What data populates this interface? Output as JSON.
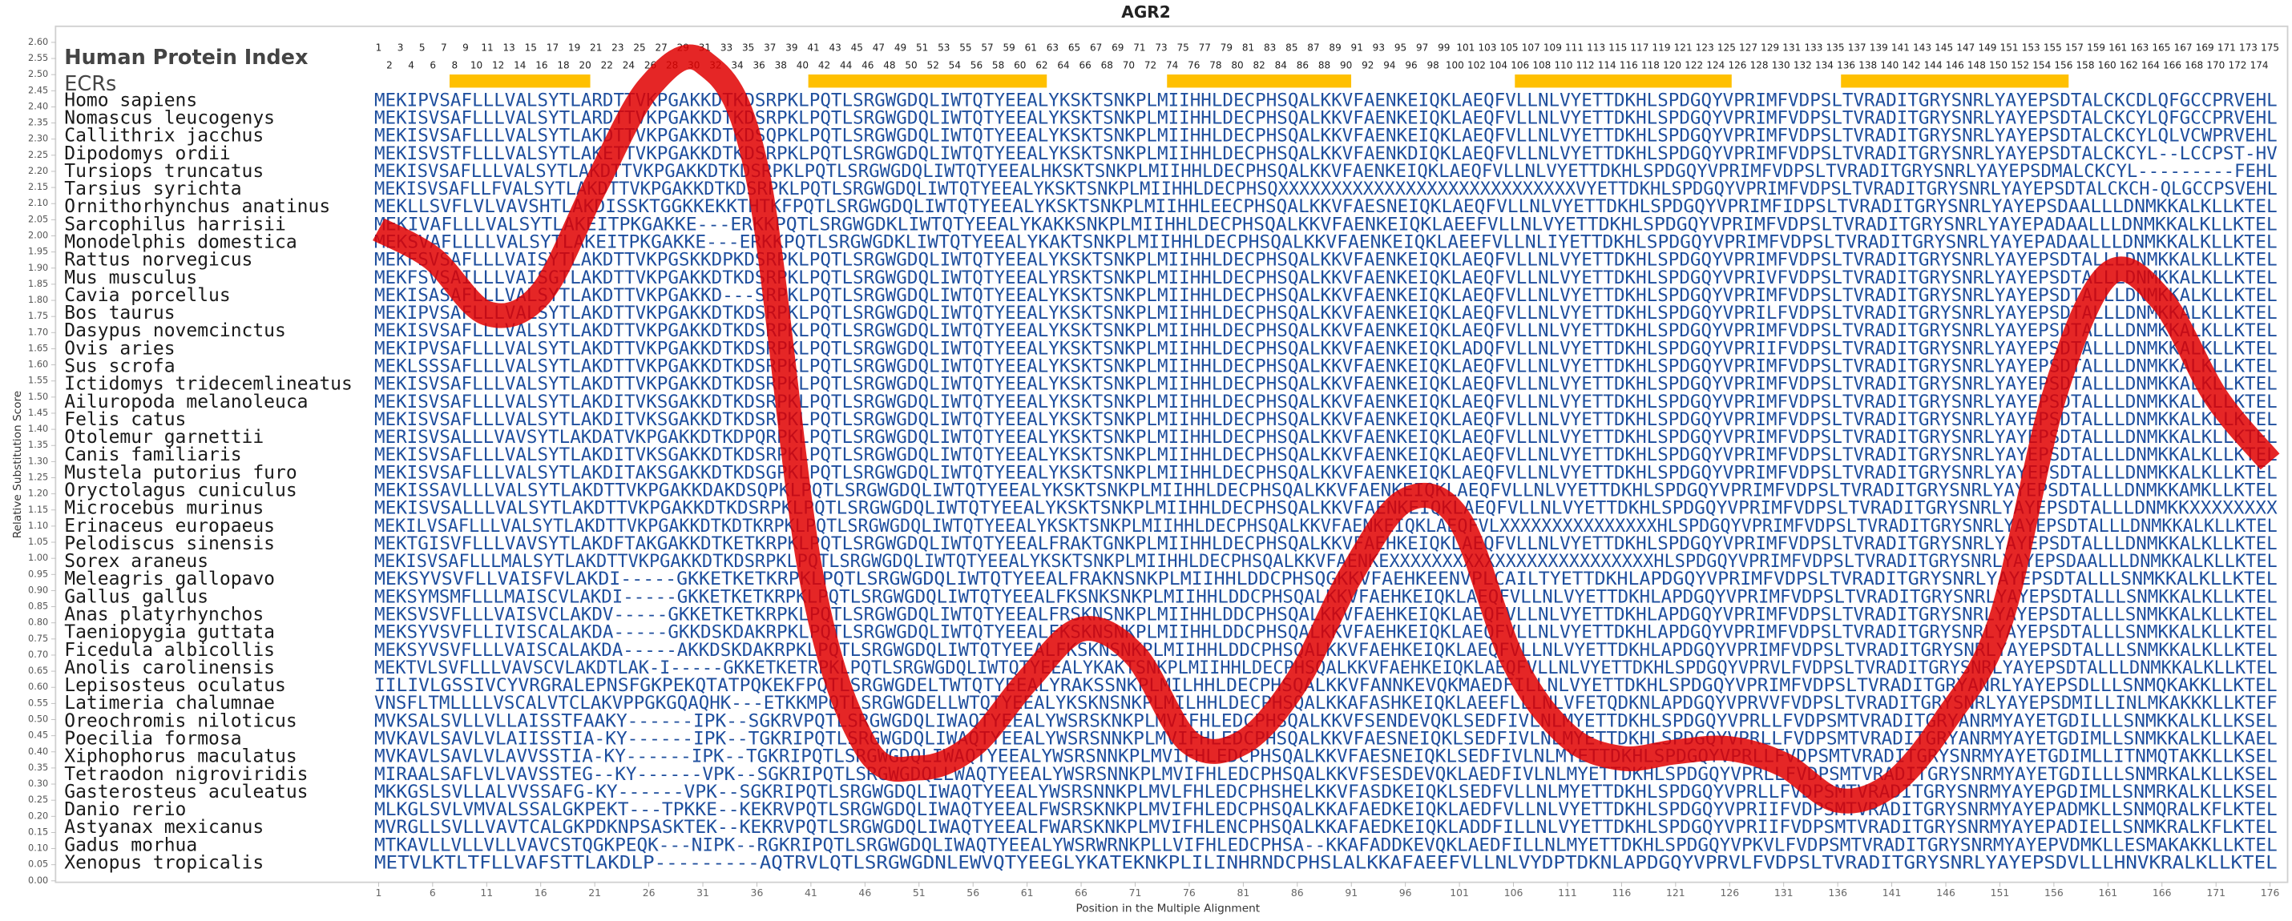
{
  "chart_data": {
    "type": "line",
    "title": "AGR2",
    "x_label": "Position in the Multiple Alignment",
    "y_label": "Relative Substitution Score",
    "x": [
      1,
      6,
      11,
      16,
      21,
      26,
      31,
      36,
      41,
      46,
      51,
      56,
      61,
      66,
      71,
      76,
      81,
      86,
      91,
      96,
      101,
      106,
      111,
      116,
      121,
      126,
      131,
      136,
      141,
      146,
      151,
      156,
      161,
      166,
      171,
      176
    ],
    "series": [
      {
        "color": "#e00000",
        "values": [
          2.02,
          1.93,
          1.76,
          1.82,
          2.15,
          2.46,
          2.54,
          2.2,
          0.95,
          0.42,
          0.35,
          0.42,
          0.62,
          0.78,
          0.7,
          0.43,
          0.43,
          0.62,
          0.95,
          1.18,
          1.12,
          0.68,
          0.45,
          0.38,
          0.4,
          0.41,
          0.36,
          0.25,
          0.3,
          0.5,
          0.8,
          1.5,
          1.88,
          1.8,
          1.5,
          1.3
        ]
      }
    ],
    "xlim": [
      0,
      177
    ],
    "ylim": [
      0,
      2.6
    ],
    "xticks": [
      1,
      6,
      11,
      16,
      21,
      26,
      31,
      36,
      41,
      46,
      51,
      56,
      61,
      66,
      71,
      76,
      81,
      86,
      91,
      96,
      101,
      106,
      111,
      116,
      121,
      126,
      131,
      136,
      141,
      146,
      151,
      156,
      161,
      166,
      171,
      176
    ],
    "yticks": [
      {
        "value": 0,
        "label": "0.00"
      },
      {
        "value": 0.05,
        "label": "0.05"
      },
      {
        "value": 0.1,
        "label": "0.10"
      },
      {
        "value": 0.15,
        "label": "0.15"
      },
      {
        "value": 0.2,
        "label": "0.20"
      },
      {
        "value": 0.25,
        "label": "0.25"
      },
      {
        "value": 0.3,
        "label": "0.30"
      },
      {
        "value": 0.35,
        "label": "0.35"
      },
      {
        "value": 0.4,
        "label": "0.40"
      },
      {
        "value": 0.45,
        "label": "0.45"
      },
      {
        "value": 0.5,
        "label": "0.50"
      },
      {
        "value": 0.55,
        "label": "0.55"
      },
      {
        "value": 0.6,
        "label": "0.60"
      },
      {
        "value": 0.65,
        "label": "0.65"
      },
      {
        "value": 0.7,
        "label": "0.70"
      },
      {
        "value": 0.75,
        "label": "0.75"
      },
      {
        "value": 0.8,
        "label": "0.80"
      },
      {
        "value": 0.85,
        "label": "0.85"
      },
      {
        "value": 0.9,
        "label": "0.90"
      },
      {
        "value": 0.95,
        "label": "0.95"
      },
      {
        "value": 1,
        "label": "1.00"
      },
      {
        "value": 1.05,
        "label": "1.05"
      },
      {
        "value": 1.1,
        "label": "1.10"
      },
      {
        "value": 1.15,
        "label": "1.15"
      },
      {
        "value": 1.2,
        "label": "1.20"
      },
      {
        "value": 1.25,
        "label": "1.25"
      },
      {
        "value": 1.3,
        "label": "1.30"
      },
      {
        "value": 1.35,
        "label": "1.35"
      },
      {
        "value": 1.4,
        "label": "1.40"
      },
      {
        "value": 1.45,
        "label": "1.45"
      },
      {
        "value": 1.5,
        "label": "1.50"
      },
      {
        "value": 1.55,
        "label": "1.55"
      },
      {
        "value": 1.6,
        "label": "1.60"
      },
      {
        "value": 1.65,
        "label": "1.65"
      },
      {
        "value": 1.7,
        "label": "1.70"
      },
      {
        "value": 1.75,
        "label": "1.75"
      },
      {
        "value": 1.8,
        "label": "1.80"
      },
      {
        "value": 1.85,
        "label": "1.85"
      },
      {
        "value": 1.9,
        "label": "1.90"
      },
      {
        "value": 1.95,
        "label": "1.95"
      },
      {
        "value": 2,
        "label": "2.00"
      },
      {
        "value": 2.05,
        "label": "2.05"
      },
      {
        "value": 2.1,
        "label": "2.10"
      },
      {
        "value": 2.15,
        "label": "2.15"
      },
      {
        "value": 2.2,
        "label": "2.20"
      },
      {
        "value": 2.25,
        "label": "2.25"
      },
      {
        "value": 2.3,
        "label": "2.30"
      },
      {
        "value": 2.35,
        "label": "2.35"
      },
      {
        "value": 2.4,
        "label": "2.40"
      },
      {
        "value": 2.45,
        "label": "2.45"
      },
      {
        "value": 2.5,
        "label": "2.50"
      },
      {
        "value": 2.55,
        "label": "2.55"
      },
      {
        "value": 2.6,
        "label": "2.60"
      }
    ],
    "index_label": "Human Protein Index",
    "index": [
      1,
      2,
      3,
      4,
      5,
      6,
      7,
      8,
      9,
      10,
      11,
      12,
      13,
      14,
      15,
      16,
      17,
      18,
      19,
      20,
      21,
      22,
      23,
      24,
      25,
      26,
      27,
      28,
      29,
      30,
      31,
      32,
      33,
      34,
      35,
      36,
      37,
      38,
      39,
      40,
      41,
      42,
      43,
      44,
      45,
      46,
      47,
      48,
      49,
      50,
      51,
      52,
      53,
      54,
      55,
      56,
      57,
      58,
      59,
      60,
      61,
      62,
      63,
      64,
      65,
      66,
      67,
      68,
      69,
      70,
      71,
      72,
      73,
      74,
      75,
      76,
      77,
      78,
      79,
      80,
      81,
      82,
      83,
      84,
      85,
      86,
      87,
      88,
      89,
      90,
      91,
      92,
      93,
      94,
      95,
      96,
      97,
      98,
      99,
      100,
      101,
      102,
      103,
      104,
      105,
      106,
      107,
      108,
      109,
      110,
      111,
      112,
      113,
      114,
      115,
      116,
      117,
      118,
      119,
      120,
      121,
      122,
      123,
      124,
      125,
      126,
      127,
      128,
      129,
      130,
      131,
      132,
      133,
      134,
      135,
      136,
      137,
      138,
      139,
      140,
      141,
      142,
      143,
      144,
      145,
      146,
      147,
      148,
      149,
      150,
      151,
      152,
      153,
      154,
      155,
      156,
      157,
      158,
      159,
      160,
      161,
      162,
      163,
      164,
      165,
      166,
      167,
      168,
      169,
      170,
      171,
      172,
      173,
      174,
      175
    ],
    "ecr_label": "ECRs",
    "ecr_color": "#ffc000",
    "ecrs": [
      [
        8,
        20
      ],
      [
        41,
        62
      ],
      [
        74,
        90
      ],
      [
        106,
        125
      ],
      [
        136,
        156
      ]
    ],
    "rows": [
      {
        "species": "Homo sapiens",
        "sequence": "MEKIPVSAFLLLVALSYTLARDTTVKPGAKKDTKDSRPKLPQTLSRGWGDQLIWTQTYEEALYKSKTSNKPLMIIHHLDECPHSQALKKVFAENKEIQKLAEQFVLLNLVYETTDKHLSPDGQYVPRIMFVDPSLTVRADITGRYSNRLYAYEPSDTALCKCDLQFGCCPRVEHL"
      },
      {
        "species": "Nomascus leucogenys",
        "sequence": "MEKISVSAFLLLVALSYTLARDTTVKPGAKKDTKDSRPKLPQTLSRGWGDQLIWTQTYEEALYKSKTSNKPLMIIHHLDECPHSQALKKVFAENKEIQKLAEQFVLLNLVYETTDKHLSPDGQYVPRIMFVDPSLTVRADITGRYSNRLYAYEPSDTALCKCYLQFGCCPRVEHL"
      },
      {
        "species": "Callithrix jacchus",
        "sequence": "MEKISVSAFLLLVALSYTLAKDTTVKPGAKKDTKDSQPKLPQTLSRGWGDQLIWTQTYEEALYKSKTSNKPLMIIHHLDECPHSQALKKVFAENKEIQKLAEQFVLLNLVYETTDKHLSPDGQYVPRIMFVDPSLTVRADITGRYSNRLYAYEPSDTALCKCYLQLVCWPRVEHL"
      },
      {
        "species": "Dipodomys ordii",
        "sequence": "MEKISVSTFLLLVALSYTLAKETTVKPGAKKDTKDSRPKLPQTLSRGWGDQLIWTQTYEEALYKSKTSNKPLMIIHHLDECPHSQALKKVFAENKDIQKLAEQFVLLNLVYETTDKHLSPDGQYVPRIMFVDPSLTVRADITGRYSNRLYAYEPSDTALCKCYL--LCCPST-HV"
      },
      {
        "species": "Tursiops truncatus",
        "sequence": "MEKISVSAFLLLVALSYTLAKDTTVKPGAKKDTKDSRPKLPQTLSRGWGDQLIWTQTYEEALHKSKTSNKPLMIIHHLDECPHSQALKKVFAENKEIQKLAEQFVLLNLVYETTDKHLSPDGQYVPRIMFVDPSLTVRADITGRYSNRLYAYEPSDMALCKCYL---------FEHL"
      },
      {
        "species": "Tarsius syrichta",
        "sequence": "MEKISVSAFLLFVALSYTLAKDTTVKPGAKKDTKDSRPKLPQTLSRGWGDQLIWTQTYEEALYKSKTSNKPLMIIHHLDECPHSQXXXXXXXXXXXXXXXXXXXXXXXXXXXXVYETTDKHLSPDGQYVPRIMFVDPSLTVRADITGRYSNRLYAYEPSDTALCKCH-QLGCCPSVEHL"
      },
      {
        "species": "Ornithorhynchus anatinus",
        "sequence": "MEKLLSVFLVLVAVSHTLAKDISSKTGGKKEKKTHTKFPQTLSRGWGDQLIWTQTYEEALYKSKTSNKPLMIIHHLEECPHSQALKKVFAESNEIQKLAEQFVLLNLVYETTDKHLSPDGQYVPRIMFIDPSLTVRADITGRYSNRLYAYEPSDAALLLDNMKKALKLLKTEL"
      },
      {
        "species": "Sarcophilus harrisii",
        "sequence": "MEKIVAFLLLVALSYTLAKEITPKGAKKE---ERKKPQTLSRGWGDKLIWTQTYEEALYKAKKSNKPLMIIHHLDECPHSQALKKVFAENKEIQKLAEEFVLLNLVYETTDKHLSPDGQYVPRIMFVDPSLTVRADITGRYSNRLYAYEPADAALLLDNMKKALKLLKTEL"
      },
      {
        "species": "Monodelphis domestica",
        "sequence": "MEKSVAFLLLLVALSYTLAKEITPKGAKKE---ERKKPQTLSRGWGDKLIWTQTYEEALYKAKTSNKPLMIIHHLDECPHSQALKKVFAENKEIQKLAEEFVLLNLIYETTDKHLSPDGQYVPRIMFVDPSLTVRADITGRYSNRLYAYEPADAALLLDNMKKALKLLKTEL"
      },
      {
        "species": "Rattus norvegicus",
        "sequence": "MEKFSVSAFLLLVAISYTLAKDTTVKPGSKKDPKDSRPKLPQTLSRGWGDQLIWTQTYEEALYKSKTSNKPLMIIHHLDECPHSQALKKVFAENKEIQKLAEQFVLLNLVYETTDKHLSPDGQYVPRIMFVDPSLTVRADITGRYSNRLYAYEPSDTALLLDNMKKALKLLKTEL"
      },
      {
        "species": "Mus musculus",
        "sequence": "MEKFSVSAILLLVAISGTLAKDTTVKPGAKKDTKDSRPKLPQTLSRGWGDQLIWTQTYEEALYRSKTSNKPLMIIHHLDECPHSQALKKVFAENKEIQKLAEQFVLLNLVYETTDKHLSPDGQYVPRIVFVDPSLTVRADITGRYSNRLYAYEPSDTALLLDNMKKALKLLKTEL"
      },
      {
        "species": "Cavia porcellus",
        "sequence": "MEKISASAFLLLVALSYTLAKDTTVKPGAKKD---SRPKLPQTLSRGWGDQLIWTQTYEEALYKSKTSNKPLMIIHHLDECPHSQALKKVFAENKEIQKLAEQFVLLNLVYETTDKHLSPDGQYVPRIMFVDPSLTVRADITGRYSNRLYAYEPSDTALLLDNMKKALKLLKTEL"
      },
      {
        "species": "Bos taurus",
        "sequence": "MEKIPVSAFLLLVALSYTLAKDTTVKPGAKKDTKDSRPKLPQTLSRGWGDQLIWTQTYEEALYKSKTSNKPLMIIHHLDECPHSQALKKVFAENKEIQKLAEQFVLLNLVYETTDKHLSPDGQYVPRILFVDPSLTVRADITGRYSNRLYAYEPSDTALLLDNMKKALKLLKTEL"
      },
      {
        "species": "Dasypus novemcinctus",
        "sequence": "MEKISVSAFLLLVALSYTLAKDTTVKPGAKKDTKDSRPKLPQTLSRGWGDQLIWTQTYEEALYKSKTSNKPLMIIHHLDECPHSQALKKVFAENKEIQKLAEQFVLLNLVYETTDKHLSPDGQYVPRIMFVDPSLTVRADITGRYSNRLYAYEPSDTALLLDNMKKALKLLKTEL"
      },
      {
        "species": "Ovis aries",
        "sequence": "MEKIPVSAFLLLVALSYTLAKDTTVKPGAKKDTKDSRPKLPQTLSRGWGDQLIWTQTYEEALYKSKTSNKPLMIIHHLDECPHSQALKKVFAENKEIQKLADQFVLLNLVYETTDKHLSPDGQYVPRIIFVDPSLTVRADITGRYSNRLYAYEPSDTALLLDNMKKALKLLKTEL"
      },
      {
        "species": "Sus scrofa",
        "sequence": "MEKLSSSAFLLLVALSYTLAKDTTVKPGAKKDTKDSRPKLPQTLSRGWGDQLIWTQTYEEALYKSKTSNKPLMIIHHLDECPHSQALKKVFAENKEIQKLAEQFVLLNLVYETTDKHLSPDGQYVPRIMFVDPSLTVRADITGRYSNRLYAYEPSDTALLLDNMKKALKLLKTEL"
      },
      {
        "species": "Ictidomys tridecemlineatus",
        "sequence": "MEKISVSAFLLLVALSYTLAKDTTVKPGAKKDTKDSRPKLPQTLSRGWGDQLIWTQTYEEALYKSKTSNKPLMIIHHLDECPHSQALKKVFAENKEIQKLAEQFVLLNLVYETTDKHLSPDGQYVPRIMFVDPSLTVRADITGRYSNRLYAYEPSDTALLLDNMKKALKLLKTEL"
      },
      {
        "species": "Ailuropoda melanoleuca",
        "sequence": "MEKISVSAFLLLVALSYTLAKDITVKSGAKKDTKDSRPKLPQTLSRGWGDQLIWTQTYEEALYKSKTSNKPLMIIHHLDECPHSQALKKVFAENKEIQKLAEQFVLLNLVYETTDKHLSPDGQYVPRIMFVDPSLTVRADITGRYSNRLYAYEPSDTALLLDNMKKALKLLKTEL"
      },
      {
        "species": "Felis catus",
        "sequence": "MEKISVSAFLLLVALSYTLAKDITVKSGAKKDTKDSRPKLPQTLSRGWGDQLIWTQTYEEALYKSKTSNKPLMIIHHLDECPHSQALKKVFAENKEIQKLAEQFVLLNLVYETTDKHLSPDGQYVPRIMFVDPSLTVRADITGRYSNRLYAYEPSDTALLLDNMKKALKLLKTEL"
      },
      {
        "species": "Otolemur garnettii",
        "sequence": "MERISVSALLLVAVSYTLAKDATVKPGAKKDTKDPQRPKLPQTLSRGWGDQLIWTQTYEEALYKSKTSNKPLMIIHHLDECPHSQALKKVFAENKEIQKLAEQFVLLNLVYETTDKHLSPDGQYVPRIMFVDPSLTVRADITGRYSNRLYAYEPSDTALLLDNMKKALKLLKTEL"
      },
      {
        "species": "Canis familiaris",
        "sequence": "MEKISVSAFLLLVALSYTLAKDITVKSGAKKDTKDSRPKLPQTLSRGWGDQLIWTQTYEEALYKSKTSNKPLMIIHHLDECPHSQALKKVFAENKEIQKLAEQFVLLNLVYETTDKHLSPDGQYVPRIMFVDPSLTVRADITGRYSNRLYAYEPSDTALLLDNMKKALKLLKTEL"
      },
      {
        "species": "Mustela putorius furo",
        "sequence": "MEKISVSAFLLLVALSYTLAKDITAKSGAKKDTKDSGPKLPQTLSRGWGDQLIWTQTYEEALYKSKTSNKPLMIIHHLDECPHSQALKKVFAENKEIQKLAEQFVLLNLVYETTDKHLSPDGQYVPRIMFVDPSLTVRADITGRYSNRLYAYEPSDTALLLDNMKKALKLLKTEL"
      },
      {
        "species": "Oryctolagus cuniculus",
        "sequence": "MEKISSAVLLLVALSYTLAKDTTVKPGAKKDAKDSQPKLPQTLSRGWGDQLIWTQTYEEALYKSKTSNKPLMIIHHLDECPHSQALKKVFAENKEIQKLAEQFVLLNLVYETTDKHLSPDGQYVPRIMFVDPSLTVRADITGRYSNRLYAYEPSDTALLLDNMKKAMKLLKTEL"
      },
      {
        "species": "Microcebus murinus",
        "sequence": "MEKISVSALLLVALSYTLAKDTTVKPGAKKDTKDSRPKLPQTLSRGWGDQLIWTQTYEEALYKSKTSNKPLMIIHHLDECPHSQALKKVFAENKEIQKLAEQFVLLNLVYETTDKHLSPDGQYVPRIMFVDPSLTVRADITGRYSNRLYAYEPSDTALLLDNMKKXXXXXXXX"
      },
      {
        "species": "Erinaceus europaeus",
        "sequence": "MEKILVSAFLLLVALSYTLAKDTTVKPGAKKDTKDTKRPKLPQTLSRGWGDQLIWTQTYEEALYKSKTSNKPLMIIHHLDECPHSQALKKVFAENKEIQKLAEQFVLXXXXXXXXXXXXXXXHLSPDGQYVPRIMFVDPSLTVRADITGRYSNRLYAYEPSDTALLLDNMKKALKLLKTEL"
      },
      {
        "species": "Pelodiscus sinensis",
        "sequence": "MEKTGISVFLLLVAVSYTLAKDFTAKGAKKDTKETKRPKLPQTLSRGWGDQLIWTQTYEEALFRAKTGNKPLMIIHHLDECPHSQALKKVFAEHKEIQKLAEQFVLLNLVYETTDKHLSPDGQYVPRIMFVDPSLTVRADITGRYSNRLYAYEPSDTALLLDNMKKALKLLKTEL"
      },
      {
        "species": "Sorex araneus",
        "sequence": "MEKISVSAFLLLMALSYTLAKDTTVKPGAKKDTKDSRPKLPQTLSRGWGDQLIWTQTYEEALYKSKTSNKPLMIIHHLDECPHSQALKKVFAENKEXXXXXXXXXXXXXXXXXXXXXXXXXHLSPDGQYVPRIMFVDPSLTVRADITGRYSNRLYAYEPSDAALLLDNMKKALKLLKTEL"
      },
      {
        "species": "Meleagris gallopavo",
        "sequence": "MEKSYVSVFLLVAISFVLAKDI-----GKKETKETKRPKLPQTLSRGWGDQLIWTQTYEEALFRAKNSNKPLMIIHHLDDCPHSQGKKVFAEHKEENVPLCAILTYETTDKHLAPDGQYVPRIMFVDPSLTVRADITGRYSNRLYAYEPSDTALLLSNMKKALKLLKTEL"
      },
      {
        "species": "Gallus gallus",
        "sequence": "MEKSYMSMFLLLMAISCVLAKDI-----GKKETKETKRPKLPQTLSRGWGDQLIWTQTYEEALFKSNKSNKPLMIIHHLDDCPHSQALKKVFAEHKEIQKLAEQFVLLNLVYETTDKHLAPDGQYVPRIMFVDPSLTVRADITGRYSNRLYAYEPSDTALLLSNMKKALKLLKTEL"
      },
      {
        "species": "Anas platyrhynchos",
        "sequence": "MEKSVSVFLLLVAISVCLAKDV-----GKKETKETKRPKLPQTLSRGWGDQLIWTQTYEEALFRSKNSNKPLMIIHHLDDCPHSQALKKVFAEHKEIQKLAEQFVLLNLVYETTDKHLAPDGQYVPRIMFVDPSLTVRADITGRYSNRLYAYEPSDTALLLSNMKKALKLLKTEL"
      },
      {
        "species": "Taeniopygia guttata",
        "sequence": "MEKSYVSVFLLIVISCALAKDA-----GKKDSKDAKRPKLPQTLSRGWGDQLIWTQTYEEALFKSKNSNKPLMIIHHLDDCPHSQALKKVFAEHKEIQKLAEQFVLLNLVYETTDKHLAPDGQYVPRIMFVDPSLTVRADITGRYSNRLYAYEPSDTALLLSNMKKALKLLKTEL"
      },
      {
        "species": "Ficedula albicollis",
        "sequence": "MEKSYVSVFLLLVAISCALAKDA-----AKKDSKDAKRPKLPQTLSRGWGDQLIWTQTYEEALFKSKNSNKPLMIIHHLDDCPHSQALKKVFAEHKEIQKLAEQFVLLNLVYETTDKHLAPDGQYVPRIMFVDPSLTVRADITGRYSNRLYAYEPSDTALLLSNMKKALKLLKTEL"
      },
      {
        "species": "Anolis carolinensis",
        "sequence": "MEKTVLSVFLLLVAVSCVLAKDTLAK-I-----GKKETKETRPKLPQTLSRGWGDQLIWTQTYEEALYKAKTSNKPLMIIHHLDECPHSQALKKVFAEHKEIQKLAEQFVLLNLVYETTDKHLSPDGQYVPRVLFVDPSLTVRADITGRYSNRLYAYEPSDTALLLDNMKKALKLLKTEL"
      },
      {
        "species": "Lepisosteus oculatus",
        "sequence": "IILIVLGSSIVCYVRGRALEPNSFGKPEKQTATPQKEKFPQTLSRGWGDELTWTQTYEEALYRAKSSNKPLMILHHLDECPHSQALKKVFANNKEVQKMAEDFILLNLVYETTDKHLSPDGQYVPRIMFVDPSLTVRADITGRYANRLYAYEPSDLLLSNMQKAKKLLKTEL"
      },
      {
        "species": "Latimeria chalumnae",
        "sequence": "VNSFLTMLLLLVSCALVTCLAKVPPGKGQAQHK---ETKKMPQTLSRGWGDELLWTQTYEEALYKSKNSNKPLMILHHLDECPHSQALKKAFASHKEIQKLAEEFLLLNLVFETQDKNLAPDGQYVPRVVFVDPSLTVRADITGRYSNRLYAYEPSDMILLINLMKAKKKLLKTEF"
      },
      {
        "species": "Oreochromis niloticus",
        "sequence": "MVKSALSVLLVLLAISSTFAAKY------IPK--SGKRVPQTLSRGWGDQLIWAQTYEEALYWSRSKNKPLMVIFHLEDCPHSQALKKVFSENDEVQKLSEDFIVLNLMYETTDKHLSPDGQYVPRLLFVDPSMTVRADITGRYANRMYAYETGDILLLSNMKKALKLLKSEL"
      },
      {
        "species": "Poecilia formosa",
        "sequence": "MVKAVLSAVLVLAIISSTIA-KY------IPK--TGKRIPQTLSRGWGDQLIWAQTYEEALYWSRSNNKPLMVIFHLEDCPHSQALKKVFAESNEIQKLSEDFIVLNLMYETTDKHLSPDGQYVPRLLFVDPSMTVRADITGRYANRMYAYETGDIMLLSNMKKALKLLKAEL"
      },
      {
        "species": "Xiphophorus maculatus",
        "sequence": "MVKAVLSAVLVLAVVSSTIA-KY------IPK--TGKRIPQTLSRGWGDQLIWAQTYEEALYWSRSNNKPLMVIFHLEDCPHSQALKKVFAESNEIQKLSEDFIVLNLMYETTDKHLSPDGQYVPRLLFVDPSMTVRADITGRYSNRMYAYETGDIMLLITNMQTAKKLLKSEL"
      },
      {
        "species": "Tetraodon nigroviridis",
        "sequence": "MIRAALSAFLVLVAVSSTEG--KY------VPK--SGKRIPQTLSRGWGDQLLWAQTYEEALYWSRSNNKPLMVIFHLEDCPHSQALKKVFSESDEVQKLAEDFIVLNLMYETTDKHLSPDGQYVPRLLFVDPSMTVRADITGRYSNRMYAYETGDILLLSNMRKALKLLKSEL"
      },
      {
        "species": "Gasterosteus aculeatus",
        "sequence": "MKKGSLSVLLALVVSSAFG-KY------VPK--SGKRIPQTLSRGWGDQLIWAQTYEEALYWSRSNNKPLMVLFHLEDCPHSHELKKVFASDKEIQKLSEDFVLLNLMYETTDKHLSPDGQYVPRLLFVDPSMTVRADITGRYSNRMYAYEPGDIMLLSNMRKALKLLKSEL"
      },
      {
        "species": "Danio rerio",
        "sequence": "MLKGLSVLVMVALSSALGKPEKT---TPKKE--KEKRVPQTLSRGWGDQLIWAQTYEEALFWSRSKNKPLMVIFHLEDCPHSQALKKAFAEDKEIQKLAEDFVLLNLVYETTDKHLSPDGQYVPRIIFVDPSMTVRADITGRYSNRMYAYEPADMKLLSNMQRALKFLKTEL"
      },
      {
        "species": "Astyanax mexicanus",
        "sequence": "MVRGLLSVLLVAVTCALGKPDKNPSASKTEK--KEKRVPQTLSRGWGDQLIWAQTYEEALFWARSKNKPLMVIFHLENCPHSQALKKAFAEDKEIQKLADDFILLNLVYETTDKHLSPDGQYVPRIIFVDPSMTVRADITGRYSNRMYAYEPADIELLSNMKRALKFLKTEL"
      },
      {
        "species": "Gadus morhua",
        "sequence": "MTKAVLLVLLVLLVAVCSTQGKPEQK---NIPK--RGKRIPQTLSRGWGDQLIWAQTYEEALYWSRWRNKPLLVIFHLEDCPHSA--KKAFADDKEVQKLAEDFILLNLMYETTDKHLSPDGQYVPKVLFVDPSMTVRADITGRYSNRMYAYEPVDMKLLESMAKAKKLLKTEL"
      },
      {
        "species": "Xenopus tropicalis",
        "sequence": "METVLKTLTFLLVAFSTTLAKDLP---------AQTRVLQTLSRGWGDNLEWVQTYEEGLYKATEKNKPLILINHRNDCPHSLALKKAFAEEFVLLNLVYDPTDKNLAPDGQYVPRVLFVDPSLTVRADITGRYSNRLYAYEPSDVLLLHNVKRALKLLKTEL"
      }
    ]
  }
}
